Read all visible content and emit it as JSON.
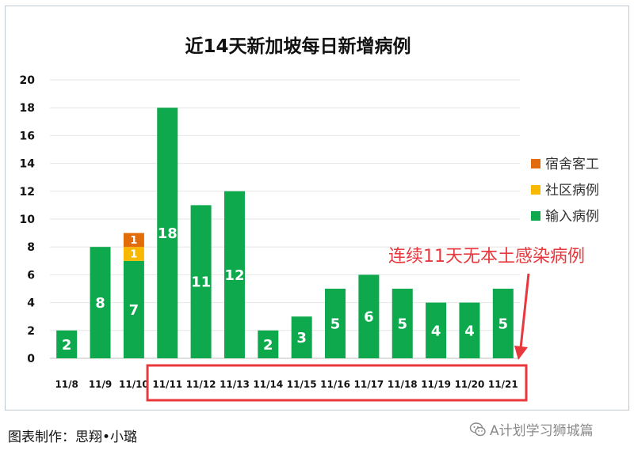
{
  "chart_data": {
    "type": "bar",
    "title": "近14天新加坡每日新增病例",
    "categories": [
      "11/8",
      "11/9",
      "11/10",
      "11/11",
      "11/12",
      "11/13",
      "11/14",
      "11/15",
      "11/16",
      "11/17",
      "11/18",
      "11/19",
      "11/20",
      "11/21"
    ],
    "series": [
      {
        "name": "输入病例",
        "color": "#0ea84d",
        "values": [
          2,
          8,
          7,
          18,
          11,
          12,
          2,
          3,
          5,
          6,
          5,
          4,
          4,
          5
        ]
      },
      {
        "name": "社区病例",
        "color": "#f9b800",
        "values": [
          0,
          0,
          1,
          0,
          0,
          0,
          0,
          0,
          0,
          0,
          0,
          0,
          0,
          0
        ]
      },
      {
        "name": "宿舍客工",
        "color": "#e36c0a",
        "values": [
          0,
          0,
          1,
          0,
          0,
          0,
          0,
          0,
          0,
          0,
          0,
          0,
          0,
          0
        ]
      }
    ],
    "stacked": true,
    "ylim": [
      0,
      20
    ],
    "yticks": [
      0,
      2,
      4,
      6,
      8,
      10,
      12,
      14,
      16,
      18,
      20
    ],
    "grid": true,
    "legend_position": "right",
    "legend_order": [
      "宿舍客工",
      "社区病例",
      "输入病例"
    ],
    "annotation": {
      "text": "连续11天无本土感染病例",
      "color": "#e8383d",
      "highlight_categories": [
        "11/11",
        "11/21"
      ]
    }
  },
  "footer": {
    "credit": "图表制作：思翔•小璐",
    "watermark": "A计划学习狮城篇",
    "watermark_icon": "wechat-icon"
  }
}
